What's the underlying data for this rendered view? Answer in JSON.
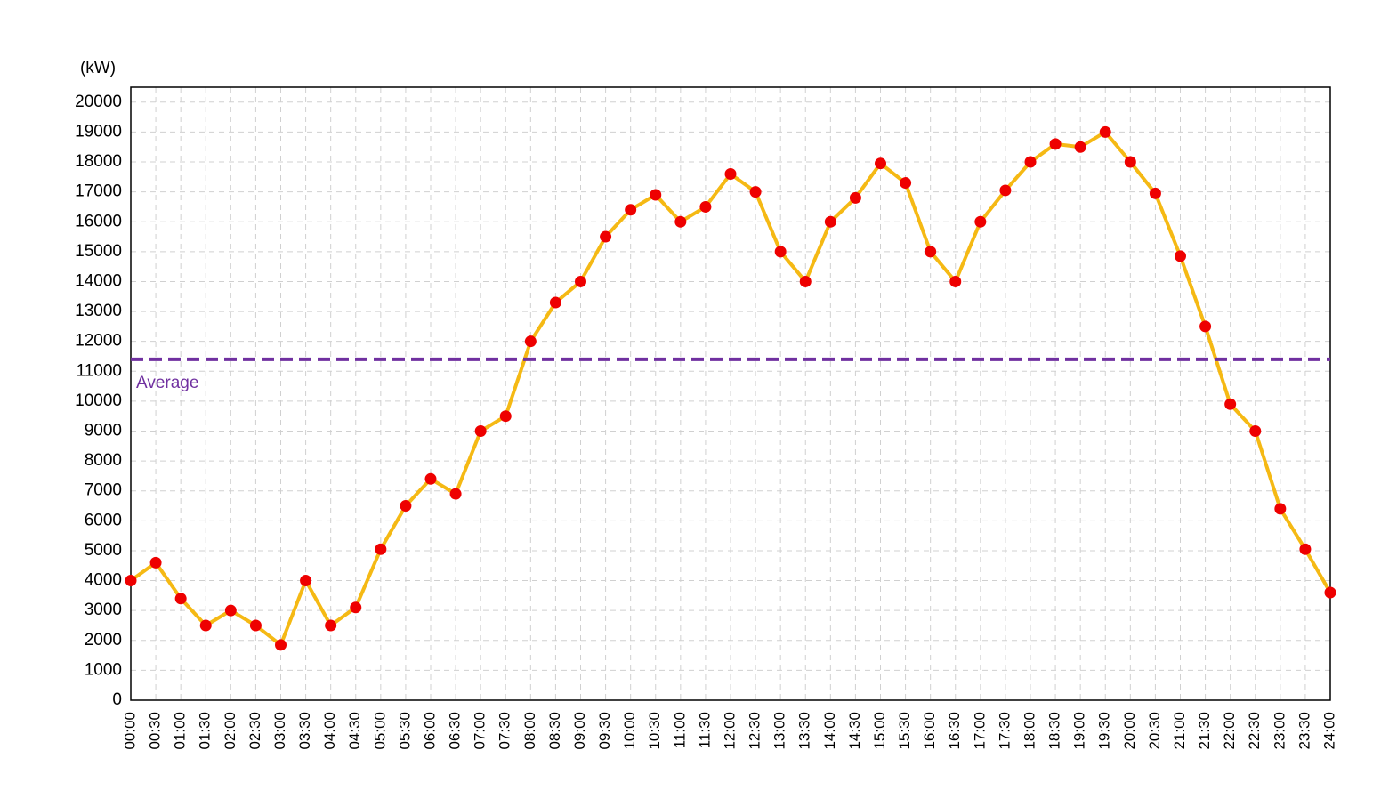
{
  "chart_data": {
    "type": "line",
    "y_label": "(kW)",
    "categories": [
      "00:00",
      "00:30",
      "01:00",
      "01:30",
      "02:00",
      "02:30",
      "03:00",
      "03:30",
      "04:00",
      "04:30",
      "05:00",
      "05:30",
      "06:00",
      "06:30",
      "07:00",
      "07:30",
      "08:00",
      "08:30",
      "09:00",
      "09:30",
      "10:00",
      "10:30",
      "11:00",
      "11:30",
      "12:00",
      "12:30",
      "13:00",
      "13:30",
      "14:00",
      "14:30",
      "15:00",
      "15:30",
      "16:00",
      "16:30",
      "17:00",
      "17:30",
      "18:00",
      "18:30",
      "19:00",
      "19:30",
      "20:00",
      "20:30",
      "21:00",
      "21:30",
      "22:00",
      "22:30",
      "23:00",
      "23:30",
      "24:00"
    ],
    "values": [
      4000,
      4600,
      3400,
      2500,
      3000,
      2500,
      1850,
      4000,
      2500,
      3100,
      5050,
      6500,
      7400,
      6900,
      9000,
      9500,
      12000,
      13300,
      14000,
      15500,
      16400,
      16900,
      16000,
      16500,
      17600,
      17000,
      15000,
      14000,
      16000,
      16800,
      17950,
      17300,
      15000,
      14000,
      16000,
      17050,
      18000,
      18600,
      18500,
      19000,
      18000,
      16950,
      14850,
      12500,
      9900,
      9000,
      6400,
      5050,
      3600
    ],
    "color": "#f5b914",
    "marker_color": "#ee0000",
    "average": {
      "label": "Average",
      "value": 11400,
      "color": "#7030a0"
    },
    "ylim": [
      0,
      20500
    ],
    "yticks": [
      0,
      1000,
      2000,
      3000,
      4000,
      5000,
      6000,
      7000,
      8000,
      9000,
      10000,
      11000,
      12000,
      13000,
      14000,
      15000,
      16000,
      17000,
      18000,
      19000,
      20000
    ],
    "grid": true
  }
}
